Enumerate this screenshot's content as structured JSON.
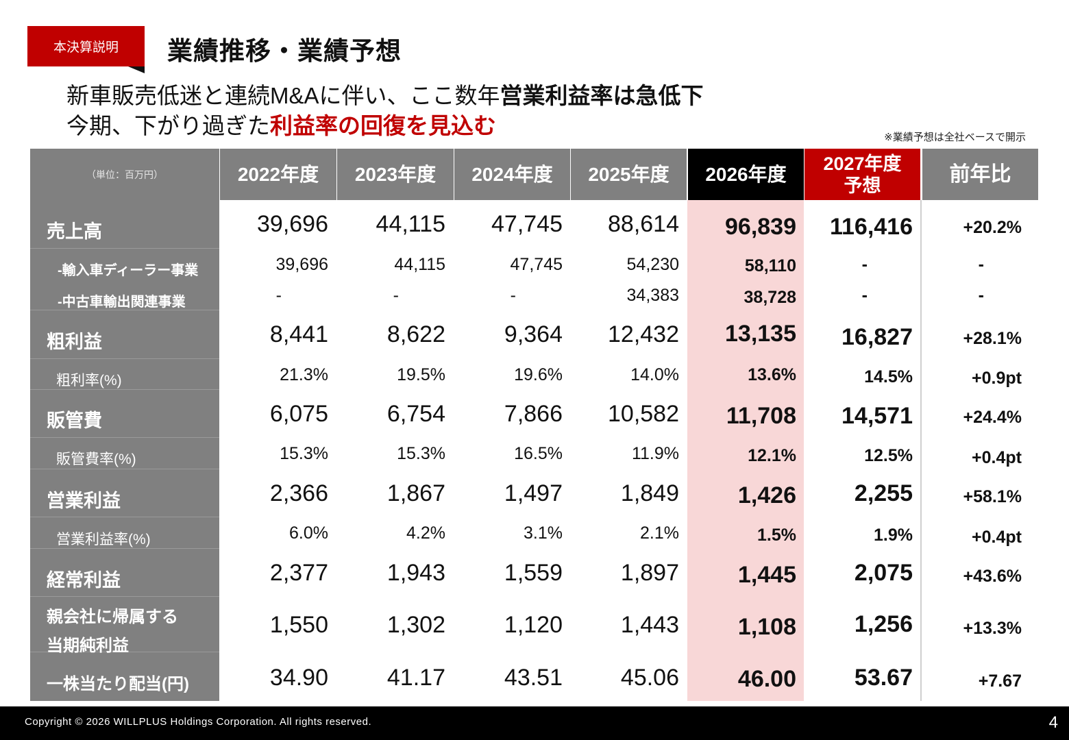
{
  "badge": "本決算説明",
  "title": "業績推移・業績予想",
  "headline": {
    "line1_a": "新車販売低迷と連続M&Aに伴い、ここ数年",
    "line1_b": "営業利益率は急低下",
    "line2_a": "今期、下がり過ぎた",
    "line2_b": "利益率の回復を見込む"
  },
  "note": "※業績予想は全社ベースで開示",
  "unit": "（単位：百万円）",
  "columns": [
    "2022年度",
    "2023年度",
    "2024年度",
    "2025年度",
    "2026年度",
    "2027年度",
    "予想",
    "前年比"
  ],
  "rows": [
    {
      "label": "売上高",
      "values": [
        "39,696",
        "44,115",
        "47,745",
        "88,614",
        "96,839",
        "116,416",
        "+20.2%"
      ]
    },
    {
      "label": "-輸入車ディーラー事業",
      "values": [
        "39,696",
        "44,115",
        "47,745",
        "54,230",
        "58,110",
        "-",
        "-"
      ]
    },
    {
      "label": "-中古車輸出関連事業",
      "values": [
        "-",
        "-",
        "-",
        "34,383",
        "38,728",
        "-",
        "-"
      ]
    },
    {
      "label": "粗利益",
      "values": [
        "8,441",
        "8,622",
        "9,364",
        "12,432",
        "13,135",
        "16,827",
        "+28.1%"
      ]
    },
    {
      "label": "粗利率(%)",
      "values": [
        "21.3%",
        "19.5%",
        "19.6%",
        "14.0%",
        "13.6%",
        "14.5%",
        "+0.9pt"
      ]
    },
    {
      "label": "販管費",
      "values": [
        "6,075",
        "6,754",
        "7,866",
        "10,582",
        "11,708",
        "14,571",
        "+24.4%"
      ]
    },
    {
      "label": "販管費率(%)",
      "values": [
        "15.3%",
        "15.3%",
        "16.5%",
        "11.9%",
        "12.1%",
        "12.5%",
        "+0.4pt"
      ]
    },
    {
      "label": "営業利益",
      "values": [
        "2,366",
        "1,867",
        "1,497",
        "1,849",
        "1,426",
        "2,255",
        "+58.1%"
      ]
    },
    {
      "label": "営業利益率(%)",
      "values": [
        "6.0%",
        "4.2%",
        "3.1%",
        "2.1%",
        "1.5%",
        "1.9%",
        "+0.4pt"
      ]
    },
    {
      "label": "経常利益",
      "values": [
        "2,377",
        "1,943",
        "1,559",
        "1,897",
        "1,445",
        "2,075",
        "+43.6%"
      ]
    },
    {
      "label_line1": "親会社に帰属する",
      "label_line2": "当期純利益",
      "values": [
        "1,550",
        "1,302",
        "1,120",
        "1,443",
        "1,108",
        "1,256",
        "+13.3%"
      ]
    },
    {
      "label": "一株当たり配当(円)",
      "values": [
        "34.90",
        "41.17",
        "43.51",
        "45.06",
        "46.00",
        "53.67",
        "+7.67"
      ]
    }
  ],
  "footer": {
    "copyright": "Copyright © 2026 WILLPLUS Holdings Corporation. All rights reserved.",
    "page": "4"
  }
}
